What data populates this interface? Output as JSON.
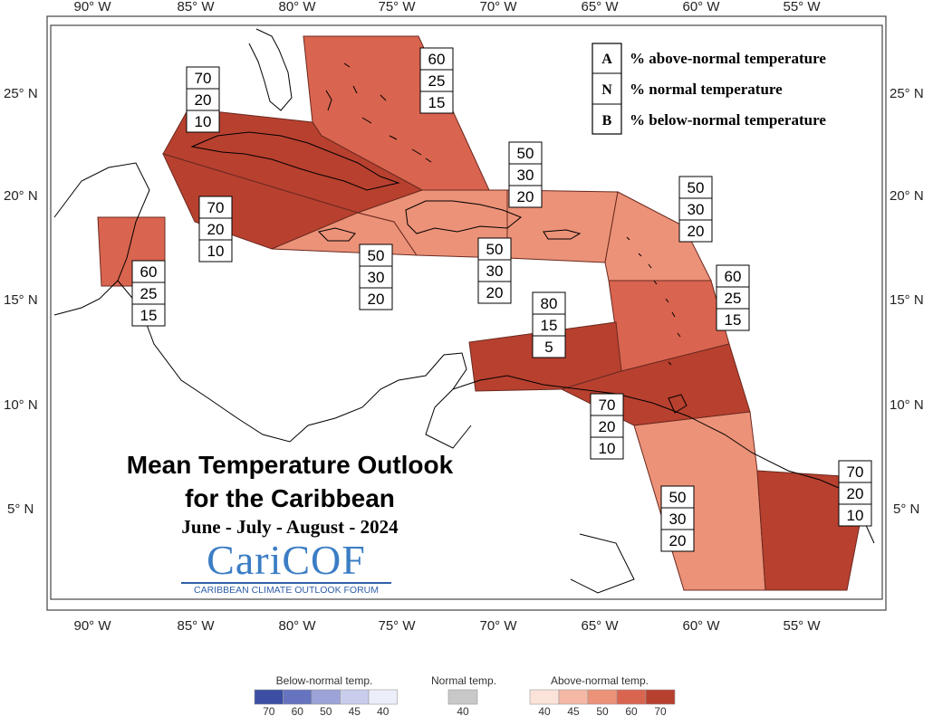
{
  "title": {
    "line1": "Mean Temperature Outlook",
    "line2": "for the Caribbean",
    "period": "June - July - August - 2024"
  },
  "logo": {
    "name": "CariCOF",
    "subtitle": "CARIBBEAN CLIMATE OUTLOOK FORUM"
  },
  "axes": {
    "lon_labels": [
      "90° W",
      "85° W",
      "80° W",
      "75° W",
      "70° W",
      "65° W",
      "60° W",
      "55° W"
    ],
    "lat_labels": [
      "25° N",
      "20° N",
      "15° N",
      "10° N",
      "5° N"
    ]
  },
  "key": [
    {
      "letter": "A",
      "text": "% above-normal temperature"
    },
    {
      "letter": "N",
      "text": "% normal temperature"
    },
    {
      "letter": "B",
      "text": "% below-normal temperature"
    }
  ],
  "regions": [
    {
      "id": "bahamas",
      "probs": [
        "60",
        "25",
        "15"
      ],
      "color": "#d9644f"
    },
    {
      "id": "cuba",
      "probs": [
        "70",
        "20",
        "10"
      ],
      "color": "#b8402f"
    },
    {
      "id": "jamaica-cayman",
      "probs": [
        "70",
        "20",
        "10"
      ],
      "color": "#b8402f"
    },
    {
      "id": "belize",
      "probs": [
        "60",
        "25",
        "15"
      ],
      "color": "#d9644f"
    },
    {
      "id": "jamaica-south",
      "probs": [
        "50",
        "30",
        "20"
      ],
      "color": "#ec9278"
    },
    {
      "id": "hispaniola",
      "probs": [
        "50",
        "30",
        "20"
      ],
      "color": "#ec9278"
    },
    {
      "id": "pr-east",
      "probs": [
        "50",
        "30",
        "20"
      ],
      "color": "#ec9278"
    },
    {
      "id": "leewards-north",
      "probs": [
        "50",
        "30",
        "20"
      ],
      "color": "#ec9278"
    },
    {
      "id": "windwards",
      "probs": [
        "60",
        "25",
        "15"
      ],
      "color": "#d9644f"
    },
    {
      "id": "abc-islands",
      "probs": [
        "80",
        "15",
        "5"
      ],
      "color": "#b8402f"
    },
    {
      "id": "trinidad",
      "probs": [
        "70",
        "20",
        "10"
      ],
      "color": "#b8402f"
    },
    {
      "id": "guyana",
      "probs": [
        "50",
        "30",
        "20"
      ],
      "color": "#ec9278"
    },
    {
      "id": "suriname-fg",
      "probs": [
        "70",
        "20",
        "10"
      ],
      "color": "#b8402f"
    }
  ],
  "scale": {
    "below": {
      "title": "Below-normal temp.",
      "labels": [
        "70",
        "60",
        "50",
        "45",
        "40"
      ],
      "colors": [
        "#3b4ea3",
        "#6674c0",
        "#9ba3d8",
        "#c9cdec",
        "#eceefa"
      ]
    },
    "normal": {
      "title": "Normal temp.",
      "labels": [
        "40"
      ],
      "colors": [
        "#c8c8c8"
      ]
    },
    "above": {
      "title": "Above-normal temp.",
      "labels": [
        "40",
        "45",
        "50",
        "60",
        "70"
      ],
      "colors": [
        "#fbe3da",
        "#f4b8a5",
        "#ec9278",
        "#d9644f",
        "#b8402f"
      ]
    }
  }
}
